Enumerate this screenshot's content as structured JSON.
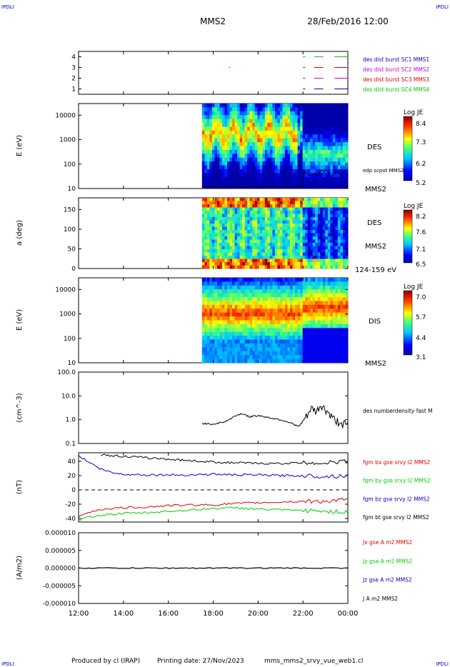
{
  "header": {
    "corner_tl": "IPDLI",
    "corner_tr": "IPDLI",
    "spacecraft": "MMS2",
    "datetime": "28/Feb/2016 12:00"
  },
  "footer": {
    "produced_by": "Produced by cl (IRAP)",
    "printing_date": "Printing date: 27/Nov/2023",
    "filename": "mms_mms2_srvy_vue_web1.cl",
    "corner_bl": "IPDLI",
    "corner_br": "IPDLI"
  },
  "colors": {
    "black": "#000000",
    "red": "#dd0000",
    "green": "#00cc00",
    "blue": "#0000cc",
    "magenta": "#cc00cc",
    "orange": "#ff7700"
  },
  "time_axis": {
    "ticks": [
      "12:00",
      "14:00",
      "16:00",
      "18:00",
      "20:00",
      "22:00",
      "00:00"
    ],
    "range_hours": [
      12,
      24
    ]
  },
  "chart_data": [
    {
      "type": "line",
      "id": "burst",
      "ylim": [
        0.5,
        4.5
      ],
      "yticks": [
        1,
        2,
        3,
        4
      ],
      "tick_labels": [
        "1",
        "2",
        "3",
        "4"
      ],
      "series": [
        {
          "name": "des dist burst SC1 MMS1",
          "color": "#0000cc",
          "level": 1,
          "segments": [
            [
              22.0,
              22.1
            ],
            [
              22.5,
              22.9
            ],
            [
              23.4,
              24.0
            ]
          ]
        },
        {
          "name": "des dist burst SC2 MMS2",
          "color": "#cc00cc",
          "level": 2,
          "segments": [
            [
              22.0,
              22.1
            ],
            [
              22.5,
              22.9
            ],
            [
              23.4,
              24.0
            ]
          ]
        },
        {
          "name": "des dist burst SC3 MMS3",
          "color": "#dd0000",
          "level": 3,
          "segments": [
            [
              18.7,
              18.75
            ],
            [
              22.0,
              22.1
            ],
            [
              22.5,
              22.9
            ],
            [
              23.4,
              24.0
            ]
          ]
        },
        {
          "name": "des dist burst SC4 MMS4",
          "color": "#00cc00",
          "level": 4,
          "segments": [
            [
              22.0,
              22.1
            ],
            [
              22.5,
              22.9
            ],
            [
              23.4,
              24.0
            ]
          ]
        }
      ]
    },
    {
      "type": "heatmap",
      "id": "des_energy",
      "ylabel": "E (eV)",
      "yscale": "log",
      "ylim": [
        10,
        30000
      ],
      "yticks": [
        10,
        100,
        1000,
        10000
      ],
      "tick_labels": [
        "10",
        "100",
        "1000",
        "10000"
      ],
      "data_start_hour": 17.5,
      "instrument": "DES",
      "spacecraft": "MMS2",
      "colorbar": {
        "label": "Log JE",
        "min": 5.2,
        "max": 8.4,
        "tick_labels": [
          "8.4",
          "7.3",
          "6.2",
          "5.2"
        ]
      },
      "overlay": {
        "name": "edp scpot MMS2",
        "color": "#000000"
      }
    },
    {
      "type": "heatmap",
      "id": "des_pitch",
      "ylabel": "a (deg)",
      "ylim": [
        0,
        180
      ],
      "yticks": [
        0,
        50,
        100,
        150
      ],
      "tick_labels": [
        "0",
        "50",
        "100",
        "150"
      ],
      "data_start_hour": 17.5,
      "instrument": "DES",
      "spacecraft": "MMS2",
      "energy_range": "124-159 eV",
      "colorbar": {
        "label": "Log JE",
        "min": 6.5,
        "max": 8.2,
        "tick_labels": [
          "8.2",
          "7.6",
          "7.1",
          "6.5"
        ]
      }
    },
    {
      "type": "heatmap",
      "id": "dis_energy",
      "ylabel": "E (eV)",
      "yscale": "log",
      "ylim": [
        10,
        30000
      ],
      "yticks": [
        10,
        100,
        1000,
        10000
      ],
      "tick_labels": [
        "10",
        "100",
        "1000",
        "10000"
      ],
      "data_start_hour": 17.5,
      "instrument": "DIS",
      "spacecraft": "MMS2",
      "colorbar": {
        "label": "Log JE",
        "min": 3.1,
        "max": 7.0,
        "tick_labels": [
          "7.0",
          "5.7",
          "4.4",
          "3.1"
        ]
      }
    },
    {
      "type": "line",
      "id": "density",
      "ylabel": "(cm^-3)",
      "yscale": "log",
      "ylim": [
        0.1,
        100
      ],
      "yticks": [
        0.1,
        1,
        10,
        100
      ],
      "tick_labels": [
        "0.1",
        "1.0",
        "10.0",
        "100.0"
      ],
      "series": [
        {
          "name": "des numberdensity fast M",
          "color": "#000000",
          "x": [
            17.5,
            18.0,
            18.5,
            18.8,
            19.0,
            19.3,
            19.6,
            20.0,
            20.5,
            21.0,
            21.5,
            21.8,
            22.0,
            22.2,
            22.4,
            22.6,
            22.8,
            23.0,
            23.3,
            23.6,
            24.0
          ],
          "values": [
            0.7,
            0.65,
            0.8,
            1.1,
            1.5,
            1.8,
            1.3,
            1.5,
            1.2,
            1.0,
            0.7,
            0.5,
            0.8,
            1.5,
            3.0,
            2.0,
            4.0,
            2.5,
            1.2,
            0.8,
            0.6
          ]
        }
      ]
    },
    {
      "type": "line",
      "id": "fgm",
      "ylabel": "(nT)",
      "ylim": [
        -45,
        52
      ],
      "yticks": [
        -40,
        -20,
        0,
        20,
        40
      ],
      "tick_labels": [
        "-40",
        "-20",
        "0",
        "20",
        "40"
      ],
      "zero_line": "dashed",
      "series": [
        {
          "name": "fgm bx gse srvy l2 MMS2",
          "color": "#dd0000",
          "x": [
            12.0,
            12.5,
            13.0,
            14.0,
            15.0,
            16.0,
            17.0,
            18.0,
            19.0,
            20.0,
            21.0,
            22.0,
            23.0,
            24.0
          ],
          "values": [
            -38,
            -31,
            -27,
            -25,
            -24,
            -22,
            -21,
            -21,
            -19,
            -18,
            -17,
            -16,
            -16,
            -14
          ]
        },
        {
          "name": "fgm by gse srvy l2 MMS2",
          "color": "#00cc00",
          "x": [
            12.0,
            12.5,
            13.0,
            14.0,
            15.0,
            16.0,
            17.0,
            18.0,
            19.0,
            20.0,
            21.0,
            22.0,
            23.0,
            24.0
          ],
          "values": [
            -42,
            -38,
            -35,
            -33,
            -32,
            -30,
            -28,
            -26,
            -25,
            -27,
            -28,
            -29,
            -30,
            -31
          ]
        },
        {
          "name": "fgm bz gse srvy l2 MMS2",
          "color": "#0000cc",
          "x": [
            12.0,
            12.5,
            13.0,
            13.5,
            14.0,
            15.0,
            16.0,
            17.0,
            18.0,
            19.0,
            20.0,
            21.0,
            22.0,
            23.0,
            24.0
          ],
          "values": [
            48,
            38,
            29,
            24,
            22,
            21,
            21,
            21,
            22,
            21,
            21,
            20,
            20,
            19,
            20
          ]
        },
        {
          "name": "fgm bt gse srvy l2 MMS2",
          "color": "#000000",
          "x": [
            13.0,
            14.0,
            15.0,
            16.0,
            17.0,
            18.0,
            19.0,
            20.0,
            21.0,
            22.0,
            23.0,
            24.0
          ],
          "values": [
            49,
            47,
            45,
            43,
            41,
            39,
            38,
            37,
            37,
            38,
            38,
            40
          ]
        }
      ]
    },
    {
      "type": "line",
      "id": "current",
      "ylabel": "(A/m2)",
      "ylim": [
        -1e-05,
        1e-05
      ],
      "yticks": [
        -1e-05,
        -5e-06,
        0,
        5e-06,
        1e-05
      ],
      "tick_labels": [
        "-0.000010",
        "-0.000005",
        "0.000000",
        "0.000005",
        "0.000010"
      ],
      "series": [
        {
          "name": "Jx gse A m2 MMS2",
          "color": "#dd0000"
        },
        {
          "name": "Jy gse A m2 MMS2",
          "color": "#00cc00"
        },
        {
          "name": "Jz gse A m2 MMS2",
          "color": "#0000cc"
        },
        {
          "name": "J A m2 MMS2",
          "color": "#000000"
        }
      ]
    }
  ]
}
